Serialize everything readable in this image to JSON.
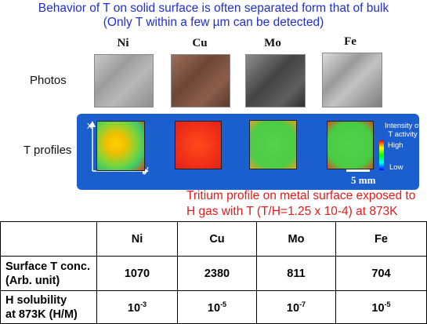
{
  "header": {
    "line1": "Behavior of T on solid surface is often separated form that of bulk",
    "line2": "(Only T within a few µm can be detected)"
  },
  "metals": [
    "Ni",
    "Cu",
    "Mo",
    "Fe"
  ],
  "rows": {
    "photos_label": "Photos",
    "tprofiles_label": "T profiles"
  },
  "axes": {
    "x": "x",
    "y": "y"
  },
  "legend": {
    "title_line1": "Intensity of",
    "title_line2": "T activity",
    "high": "High",
    "low": "Low",
    "scale_bar": "5 mm"
  },
  "caption": {
    "line1": "Tritium profile on metal surface exposed to",
    "line2": "H gas with T (T/H=1.25 x 10-4)  at 873K"
  },
  "table": {
    "headers": [
      "",
      "Ni",
      "Cu",
      "Mo",
      "Fe"
    ],
    "surface_label_1": "Surface T conc.",
    "surface_label_2": "(Arb. unit)",
    "surface_values": [
      "1070",
      "2380",
      "811",
      "704"
    ],
    "solubility_label_1": "H solubility",
    "solubility_label_2": "at 873K (H/M)",
    "solubility_base": "10",
    "solubility_exponents": [
      "-3",
      "-5",
      "-7",
      "-5"
    ]
  },
  "colors": {
    "title_blue": "#1f2fd1",
    "band_blue": "#1b5fcf",
    "caption_red": "#e21b1b"
  }
}
